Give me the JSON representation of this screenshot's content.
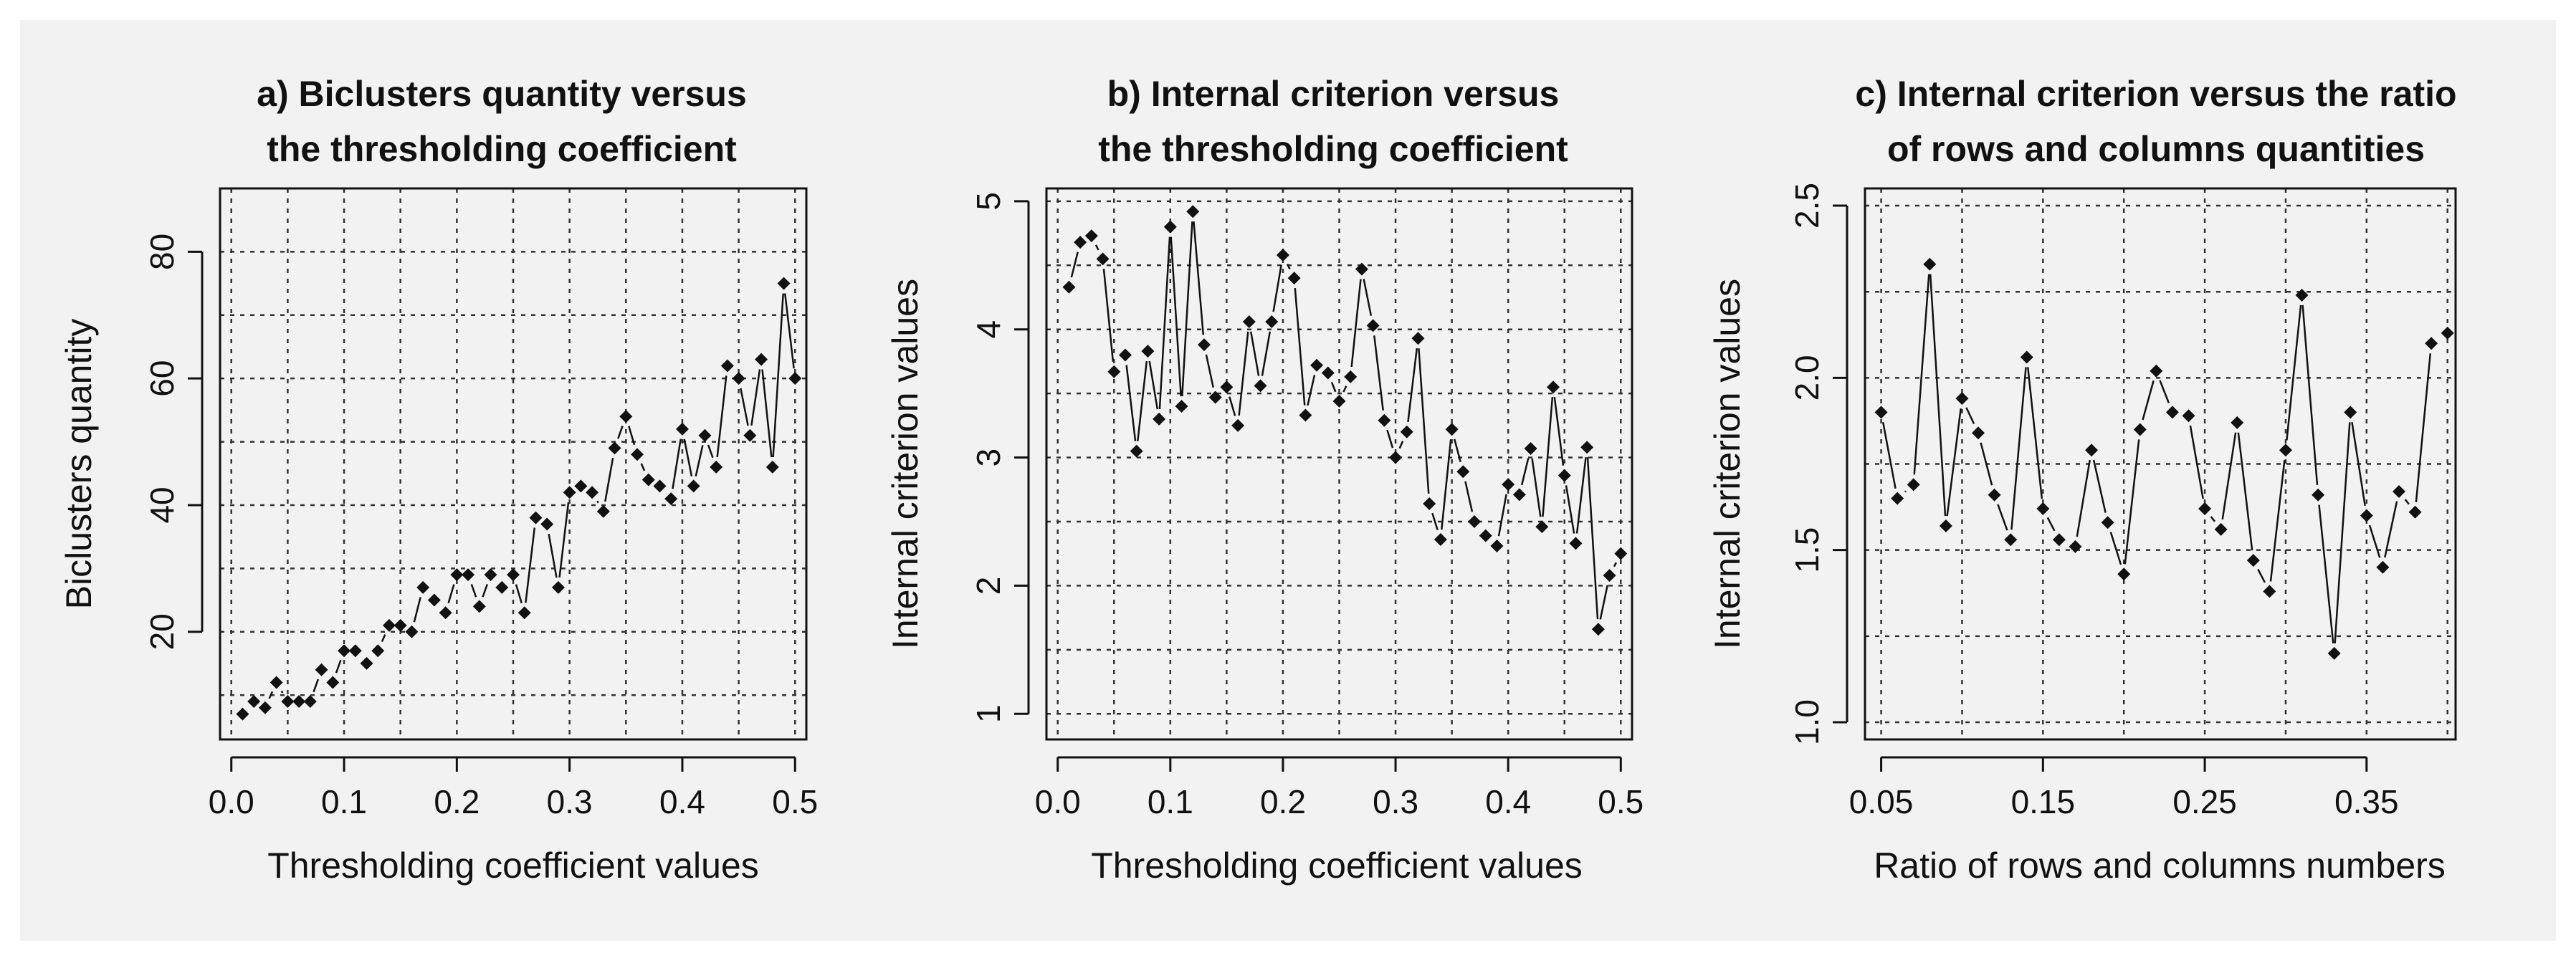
{
  "chart_data": [
    {
      "type": "line",
      "title_lines": [
        "a) Biclusters quantity versus",
        "the thresholding coefficient"
      ],
      "xlabel": "Thresholding coefficient values",
      "ylabel": "Biclusters quantity",
      "xlim": [
        -0.01,
        0.51
      ],
      "ylim": [
        3,
        90
      ],
      "xticks": [
        0.0,
        0.1,
        0.2,
        0.3,
        0.4,
        0.5
      ],
      "xtick_labels": [
        "0.0",
        "0.1",
        "0.2",
        "0.3",
        "0.4",
        "0.5"
      ],
      "yticks": [
        20,
        40,
        60,
        80
      ],
      "ytick_labels": [
        "20",
        "40",
        "60",
        "80"
      ],
      "xgrid": [
        0.0,
        0.05,
        0.1,
        0.15,
        0.2,
        0.25,
        0.3,
        0.35,
        0.4,
        0.45,
        0.5
      ],
      "ygrid": [
        10,
        20,
        30,
        40,
        50,
        60,
        70,
        80
      ],
      "grid": true,
      "x": [
        0.01,
        0.02,
        0.03,
        0.04,
        0.05,
        0.06,
        0.07,
        0.08,
        0.09,
        0.1,
        0.11,
        0.12,
        0.13,
        0.14,
        0.15,
        0.16,
        0.17,
        0.18,
        0.19,
        0.2,
        0.21,
        0.22,
        0.23,
        0.24,
        0.25,
        0.26,
        0.27,
        0.28,
        0.29,
        0.3,
        0.31,
        0.32,
        0.33,
        0.34,
        0.35,
        0.36,
        0.37,
        0.38,
        0.39,
        0.4,
        0.41,
        0.42,
        0.43,
        0.44,
        0.45,
        0.46,
        0.47,
        0.48,
        0.49,
        0.5
      ],
      "y": [
        7,
        9,
        8,
        12,
        9,
        9,
        9,
        14,
        12,
        17,
        17,
        15,
        17,
        21,
        21,
        20,
        27,
        25,
        23,
        29,
        29,
        24,
        29,
        27,
        29,
        23,
        38,
        37,
        27,
        42,
        43,
        42,
        39,
        49,
        54,
        48,
        44,
        43,
        41,
        52,
        43,
        51,
        46,
        62,
        60,
        51,
        63,
        46,
        75,
        60
      ]
    },
    {
      "type": "line",
      "title_lines": [
        "b) Internal criterion versus",
        "the thresholding coefficient"
      ],
      "xlabel": "Thresholding coefficient values",
      "ylabel": "Internal criterion values",
      "xlim": [
        -0.01,
        0.51
      ],
      "ylim": [
        0.8,
        5.1
      ],
      "xticks": [
        0.0,
        0.1,
        0.2,
        0.3,
        0.4,
        0.5
      ],
      "xtick_labels": [
        "0.0",
        "0.1",
        "0.2",
        "0.3",
        "0.4",
        "0.5"
      ],
      "yticks": [
        1,
        2,
        3,
        4,
        5
      ],
      "ytick_labels": [
        "1",
        "2",
        "3",
        "4",
        "5"
      ],
      "xgrid": [
        0.0,
        0.05,
        0.1,
        0.15,
        0.2,
        0.25,
        0.3,
        0.35,
        0.4,
        0.45,
        0.5
      ],
      "ygrid": [
        1,
        1.5,
        2,
        2.5,
        3,
        3.5,
        4,
        4.5,
        5
      ],
      "grid": true,
      "x": [
        0.01,
        0.02,
        0.03,
        0.04,
        0.05,
        0.06,
        0.07,
        0.08,
        0.09,
        0.1,
        0.11,
        0.12,
        0.13,
        0.14,
        0.15,
        0.16,
        0.17,
        0.18,
        0.19,
        0.2,
        0.21,
        0.22,
        0.23,
        0.24,
        0.25,
        0.26,
        0.27,
        0.28,
        0.29,
        0.3,
        0.31,
        0.32,
        0.33,
        0.34,
        0.35,
        0.36,
        0.37,
        0.38,
        0.39,
        0.4,
        0.41,
        0.42,
        0.43,
        0.44,
        0.45,
        0.46,
        0.47,
        0.48,
        0.49,
        0.5
      ],
      "y": [
        4.33,
        4.68,
        4.73,
        4.55,
        3.67,
        3.8,
        3.05,
        3.83,
        3.3,
        4.8,
        3.4,
        4.92,
        3.88,
        3.47,
        3.55,
        3.25,
        4.06,
        3.56,
        4.06,
        4.58,
        4.4,
        3.33,
        3.72,
        3.66,
        3.44,
        3.63,
        4.47,
        4.03,
        3.29,
        3.0,
        3.2,
        3.93,
        2.64,
        2.36,
        3.22,
        2.89,
        2.5,
        2.39,
        2.31,
        2.79,
        2.71,
        3.07,
        2.46,
        3.55,
        2.86,
        2.33,
        3.08,
        1.66,
        2.08,
        2.25
      ]
    },
    {
      "type": "line",
      "title_lines": [
        "c) Internal criterion versus the ratio",
        "of rows and columns quantities"
      ],
      "xlabel": "Ratio of rows and columns numbers",
      "ylabel": "Internal criterion values",
      "xlim": [
        0.04,
        0.405
      ],
      "ylim": [
        0.95,
        2.55
      ],
      "xticks": [
        0.05,
        0.15,
        0.25,
        0.35
      ],
      "xtick_labels": [
        "0.05",
        "0.15",
        "0.25",
        "0.35"
      ],
      "yticks": [
        1.0,
        1.5,
        2.0,
        2.5
      ],
      "ytick_labels": [
        "1.0",
        "1.5",
        "2.0",
        "2.5"
      ],
      "xgrid": [
        0.05,
        0.1,
        0.15,
        0.2,
        0.25,
        0.3,
        0.35,
        0.4
      ],
      "ygrid": [
        1.0,
        1.25,
        1.5,
        1.75,
        2.0,
        2.25,
        2.5
      ],
      "grid": true,
      "x": [
        0.05,
        0.06,
        0.07,
        0.08,
        0.09,
        0.1,
        0.11,
        0.12,
        0.13,
        0.14,
        0.15,
        0.16,
        0.17,
        0.18,
        0.19,
        0.2,
        0.21,
        0.22,
        0.23,
        0.24,
        0.25,
        0.26,
        0.27,
        0.28,
        0.29,
        0.3,
        0.31,
        0.32,
        0.33,
        0.34,
        0.35,
        0.36,
        0.37,
        0.38,
        0.39,
        0.4
      ],
      "y": [
        1.9,
        1.65,
        1.69,
        2.33,
        1.57,
        1.94,
        1.84,
        1.66,
        1.53,
        2.06,
        1.62,
        1.53,
        1.51,
        1.79,
        1.58,
        1.43,
        1.85,
        2.02,
        1.9,
        1.89,
        1.62,
        1.56,
        1.87,
        1.47,
        1.38,
        1.79,
        2.24,
        1.66,
        1.2,
        1.9,
        1.6,
        1.45,
        1.67,
        1.61,
        2.1,
        2.13
      ]
    }
  ]
}
